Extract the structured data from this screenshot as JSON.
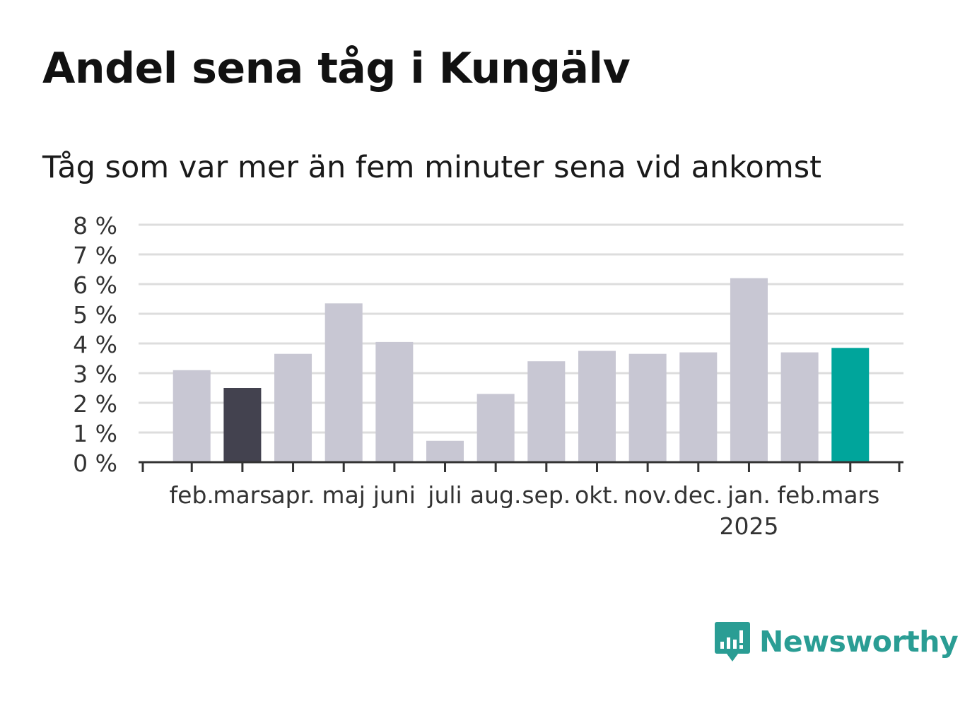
{
  "title": "Andel sena tåg i Kungälv",
  "subtitle": "Tåg som var mer än fem minuter sena vid ankomst",
  "brand": {
    "name": "Newsworthy",
    "color": "#2a9d94",
    "icon": "newsworthy-logo-icon"
  },
  "chart_data": {
    "type": "bar",
    "categories": [
      "feb.",
      "mars",
      "apr.",
      "maj",
      "juni",
      "juli",
      "aug.",
      "sep.",
      "okt.",
      "nov.",
      "dec.",
      "jan.",
      "feb.",
      "mars"
    ],
    "year_label": "2025",
    "year_label_under_index": 11,
    "values": [
      3.1,
      2.5,
      3.65,
      5.35,
      4.05,
      0.72,
      2.3,
      3.4,
      3.75,
      3.65,
      3.7,
      6.2,
      3.7,
      3.85
    ],
    "colors": [
      "#c8c7d3",
      "#43424f",
      "#c8c7d3",
      "#c8c7d3",
      "#c8c7d3",
      "#c8c7d3",
      "#c8c7d3",
      "#c8c7d3",
      "#c8c7d3",
      "#c8c7d3",
      "#c8c7d3",
      "#c8c7d3",
      "#c8c7d3",
      "#00a59b"
    ],
    "y_ticks": [
      "0 %",
      "1 %",
      "2 %",
      "3 %",
      "4 %",
      "5 %",
      "6 %",
      "7 %",
      "8 %"
    ],
    "ylim": [
      0,
      8
    ],
    "grid": true,
    "legend": "none"
  }
}
